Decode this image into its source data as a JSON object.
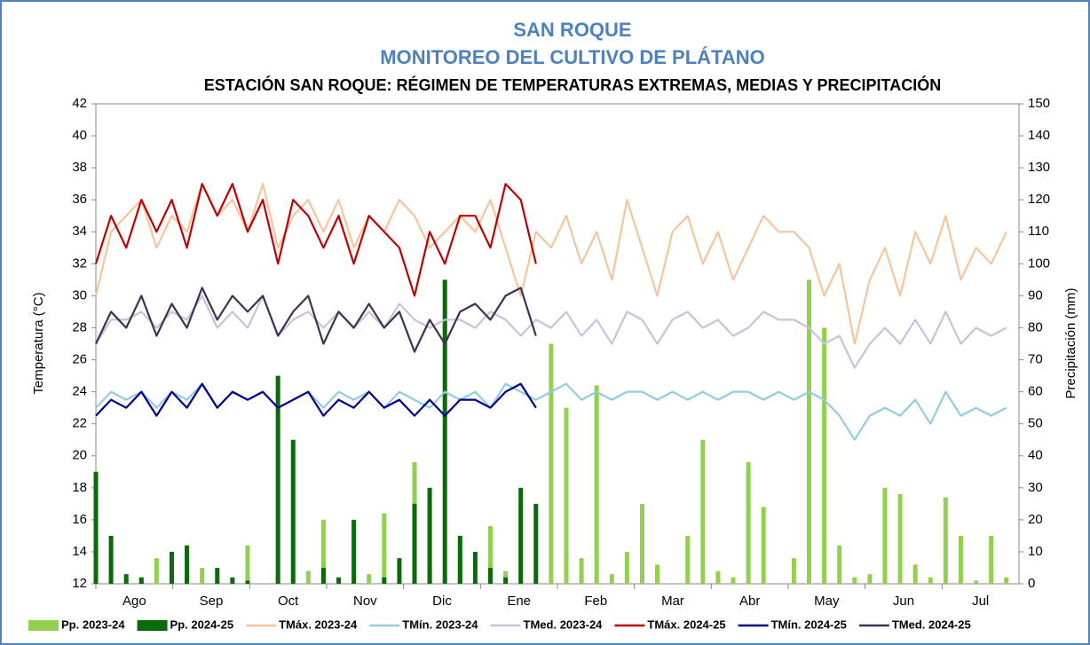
{
  "chart_data": {
    "type": "line",
    "title": "SAN ROQUE",
    "subtitle": "MONITOREO DEL CULTIVO DE PLÁTANO",
    "chart_title": "ESTACIÓN SAN ROQUE: RÉGIMEN DE TEMPERATURAS EXTREMAS, MEDIAS Y PRECIPITACIÓN",
    "y_label": "Temperatura (°C)",
    "y2_label": "Precipitación (mm)",
    "categories": [
      "Ago",
      "Sep",
      "Oct",
      "Nov",
      "Dic",
      "Ene",
      "Feb",
      "Mar",
      "Abr",
      "May",
      "Jun",
      "Jul"
    ],
    "x": [
      0,
      6,
      12,
      18,
      24,
      30,
      36,
      42,
      48,
      54,
      60,
      66,
      72,
      78,
      84,
      90,
      96,
      102,
      108,
      114,
      120,
      126,
      132,
      138,
      144,
      150,
      156,
      162,
      168,
      174,
      180,
      186,
      192,
      198,
      204,
      210,
      216,
      222,
      228,
      234,
      240,
      246,
      252,
      258,
      264,
      270,
      276,
      282,
      288,
      294,
      300,
      306,
      312,
      318,
      324,
      330,
      336,
      342,
      348,
      354,
      360
    ],
    "xlim": [
      0,
      365
    ],
    "ylim": [
      12,
      42
    ],
    "yticks": [
      12,
      14,
      16,
      18,
      20,
      22,
      24,
      26,
      28,
      30,
      32,
      34,
      36,
      38,
      40,
      42
    ],
    "y2lim": [
      0,
      150
    ],
    "y2ticks": [
      0,
      10,
      20,
      30,
      40,
      50,
      60,
      70,
      80,
      90,
      100,
      110,
      120,
      130,
      140,
      150
    ],
    "series": [
      {
        "name": "Pp. 2023-24",
        "type": "bar",
        "axis": "y2",
        "color": "#92d050",
        "values": [
          5,
          1,
          0,
          2,
          8,
          0,
          3,
          5,
          1,
          0,
          12,
          0,
          2,
          0,
          4,
          20,
          1,
          0,
          3,
          22,
          0,
          38,
          5,
          0,
          8,
          0,
          18,
          4,
          25,
          0,
          75,
          55,
          8,
          62,
          3,
          10,
          25,
          6,
          0,
          15,
          45,
          4,
          2,
          38,
          24,
          0,
          8,
          95,
          80,
          12,
          2,
          3,
          30,
          28,
          6,
          2,
          27,
          15,
          1,
          15,
          2
        ]
      },
      {
        "name": "Pp. 2024-25",
        "type": "bar",
        "axis": "y2",
        "color": "#0a6b0a",
        "values": [
          35,
          15,
          3,
          2,
          0,
          10,
          12,
          0,
          5,
          2,
          1,
          0,
          65,
          45,
          0,
          5,
          2,
          20,
          0,
          2,
          8,
          25,
          30,
          95,
          15,
          10,
          5,
          2,
          30,
          25,
          null,
          null,
          null,
          null,
          null,
          null,
          null,
          null,
          null,
          null,
          null,
          null,
          null,
          null,
          null,
          null,
          null,
          null,
          null,
          null,
          null,
          null,
          null,
          null,
          null,
          null,
          null,
          null,
          null,
          null,
          null
        ]
      },
      {
        "name": "TMáx. 2023-24",
        "type": "line",
        "color": "#f8c49c",
        "values": [
          30,
          34,
          35,
          36,
          33,
          35,
          34,
          37,
          35,
          36,
          34,
          37,
          33,
          35,
          36,
          34,
          36,
          33,
          35,
          34,
          36,
          35,
          33,
          34,
          35,
          34,
          36,
          33,
          30,
          34,
          33,
          35,
          32,
          34,
          31,
          36,
          33,
          30,
          34,
          35,
          32,
          34,
          31,
          33,
          35,
          34,
          34,
          33,
          30,
          32,
          27,
          31,
          33,
          30,
          34,
          32,
          35,
          31,
          33,
          32,
          34
        ]
      },
      {
        "name": "TMín. 2023-24",
        "type": "line",
        "color": "#92cddc",
        "values": [
          23,
          24,
          23.5,
          24,
          23,
          24,
          23.5,
          24.5,
          23,
          24,
          23.5,
          24,
          23,
          23.5,
          24,
          23,
          24,
          23.5,
          24,
          23,
          24,
          23.5,
          23,
          24,
          23.5,
          24,
          23,
          24.5,
          24,
          23.5,
          24,
          24.5,
          23.5,
          24,
          23.5,
          24,
          24,
          23.5,
          24,
          23.5,
          24,
          23.5,
          24,
          24,
          23.5,
          24,
          23.5,
          24,
          23.5,
          22.5,
          21,
          22.5,
          23,
          22.5,
          23.5,
          22,
          24,
          22.5,
          23,
          22.5,
          23
        ]
      },
      {
        "name": "TMed. 2023-24",
        "type": "line",
        "color": "#ccc0da",
        "values": [
          27,
          28.5,
          28.5,
          29,
          28,
          29,
          28.5,
          30,
          28,
          29,
          28,
          30,
          27.5,
          28.5,
          29,
          28,
          29,
          28,
          29,
          28,
          29.5,
          28.5,
          28,
          28.5,
          28.5,
          28,
          29,
          28.5,
          27.5,
          28.5,
          28,
          29,
          27.5,
          28.5,
          27,
          29,
          28.5,
          27,
          28.5,
          29,
          28,
          28.5,
          27.5,
          28,
          29,
          28.5,
          28.5,
          28,
          27,
          27.5,
          25.5,
          27,
          28,
          27,
          28.5,
          27,
          29,
          27,
          28,
          27.5,
          28
        ]
      },
      {
        "name": "TMáx. 2024-25",
        "type": "line",
        "color": "#c00000",
        "values": [
          32,
          35,
          33,
          36,
          34,
          36,
          33,
          37,
          35,
          37,
          34,
          36,
          32,
          36,
          35,
          33,
          35,
          32,
          35,
          34,
          33,
          30,
          34,
          32,
          35,
          35,
          33,
          37,
          36,
          32,
          null,
          null,
          null,
          null,
          null,
          null,
          null,
          null,
          null,
          null,
          null,
          null,
          null,
          null,
          null,
          null,
          null,
          null,
          null,
          null,
          null,
          null,
          null,
          null,
          null,
          null,
          null,
          null,
          null,
          null,
          null
        ]
      },
      {
        "name": "TMín. 2024-25",
        "type": "line",
        "color": "#00008b",
        "values": [
          22.5,
          23.5,
          23,
          24,
          22.5,
          24,
          23,
          24.5,
          23,
          24,
          23.5,
          24,
          23,
          23.5,
          24,
          22.5,
          23.5,
          23,
          24,
          23,
          23.5,
          22.5,
          23.5,
          22.5,
          23.5,
          23.5,
          23,
          24,
          24.5,
          23,
          null,
          null,
          null,
          null,
          null,
          null,
          null,
          null,
          null,
          null,
          null,
          null,
          null,
          null,
          null,
          null,
          null,
          null,
          null,
          null,
          null,
          null,
          null,
          null,
          null,
          null,
          null,
          null,
          null,
          null,
          null
        ]
      },
      {
        "name": "TMed. 2024-25",
        "type": "line",
        "color": "#403151",
        "values": [
          27,
          29,
          28,
          30,
          27.5,
          29.5,
          28,
          30.5,
          28.5,
          30,
          29,
          30,
          27.5,
          29,
          30,
          27,
          29,
          28,
          29.5,
          28,
          29,
          26.5,
          28.5,
          27,
          29,
          29.5,
          28.5,
          30,
          30.5,
          27.5,
          null,
          null,
          null,
          null,
          null,
          null,
          null,
          null,
          null,
          null,
          null,
          null,
          null,
          null,
          null,
          null,
          null,
          null,
          null,
          null,
          null,
          null,
          null,
          null,
          null,
          null,
          null,
          null,
          null,
          null,
          null
        ]
      }
    ]
  }
}
